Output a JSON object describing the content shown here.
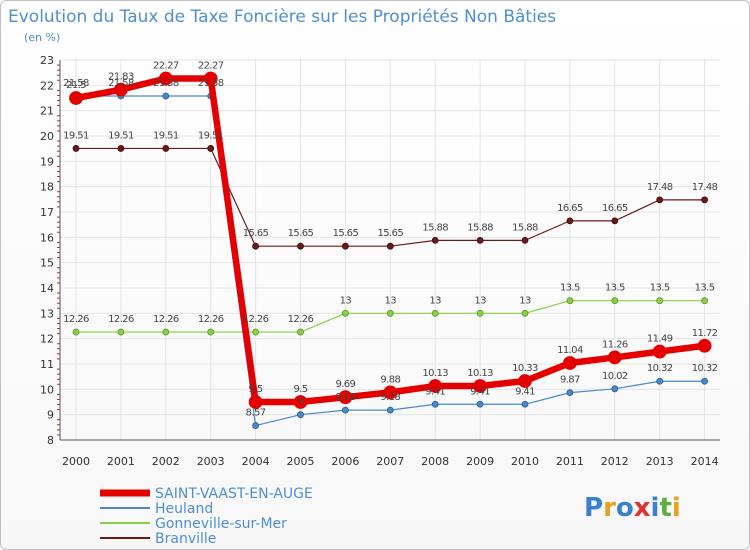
{
  "chart_data": {
    "type": "line",
    "title": "Evolution du Taux de Taxe Foncière sur les Propriétés Non Bâties",
    "subtitle": "(en %)",
    "xlabel": "",
    "ylabel": "",
    "x": [
      "2000",
      "2001",
      "2002",
      "2003",
      "2004",
      "2005",
      "2006",
      "2007",
      "2008",
      "2009",
      "2010",
      "2011",
      "2012",
      "2013",
      "2014"
    ],
    "yticks": [
      "8",
      "9",
      "10",
      "11",
      "12",
      "13",
      "14",
      "15",
      "16",
      "17",
      "18",
      "19",
      "20",
      "21",
      "22",
      "23"
    ],
    "ylim": [
      8,
      23
    ],
    "grid": true,
    "legend_position": "bottom-left",
    "series": [
      {
        "name": "Branville",
        "color": "#6b1a1a",
        "values": [
          19.51,
          19.51,
          19.51,
          19.51,
          15.65,
          15.65,
          15.65,
          15.65,
          15.88,
          15.88,
          15.88,
          16.65,
          16.65,
          17.48,
          17.48
        ],
        "labels": [
          "19.51",
          "19.51",
          "19.51",
          "19.51",
          "15.65",
          "15.65",
          "15.65",
          "15.65",
          "15.88",
          "15.88",
          "15.88",
          "16.65",
          "16.65",
          "17.48",
          "17.48"
        ]
      },
      {
        "name": "Gonneville-sur-Mer",
        "color": "#88d048",
        "values": [
          12.26,
          12.26,
          12.26,
          12.26,
          12.26,
          12.26,
          13,
          13,
          13,
          13,
          13,
          13.5,
          13.5,
          13.5,
          13.5
        ],
        "labels": [
          "12.26",
          "12.26",
          "12.26",
          "12.26",
          "12.26",
          "12.26",
          "13",
          "13",
          "13",
          "13",
          "13",
          "13.5",
          "13.5",
          "13.5",
          "13.5"
        ]
      },
      {
        "name": "Heuland",
        "color": "#4a88c8",
        "values": [
          21.58,
          21.58,
          21.58,
          21.58,
          8.57,
          9,
          9.18,
          9.18,
          9.41,
          9.41,
          9.41,
          9.87,
          10.02,
          10.32,
          10.32
        ],
        "labels": [
          "21.58",
          "21.58",
          "21.58",
          "21.58",
          "8.57",
          "9",
          "9.18",
          "9.18",
          "9.41",
          "9.41",
          "9.41",
          "9.87",
          "10.02",
          "10.32",
          "10.32"
        ]
      },
      {
        "name": "SAINT-VAAST-EN-AUGE",
        "color": "#e50000",
        "values": [
          21.5,
          21.83,
          22.27,
          22.27,
          9.5,
          9.5,
          9.69,
          9.88,
          10.13,
          10.13,
          10.33,
          11.04,
          11.26,
          11.49,
          11.72
        ],
        "labels": [
          "21.5",
          "21.83",
          "22.27",
          "22.27",
          "9.5",
          "9.5",
          "9.69",
          "9.88",
          "10.13",
          "10.13",
          "10.33",
          "11.04",
          "11.26",
          "11.49",
          "11.72"
        ]
      }
    ]
  },
  "legend": [
    {
      "name": "SAINT-VAAST-EN-AUGE",
      "color": "#e50000"
    },
    {
      "name": "Heuland",
      "color": "#4a88c8"
    },
    {
      "name": "Gonneville-sur-Mer",
      "color": "#88d048"
    },
    {
      "name": "Branville",
      "color": "#6b1a1a"
    }
  ],
  "logo": {
    "letters": [
      "P",
      "r",
      "o",
      "x",
      "i",
      "t",
      "i"
    ],
    "colors": [
      "#3a7fd0",
      "#e8a020",
      "#3a7fd0",
      "#e03030",
      "#3a7fd0",
      "#58b040",
      "#e8a020"
    ]
  }
}
